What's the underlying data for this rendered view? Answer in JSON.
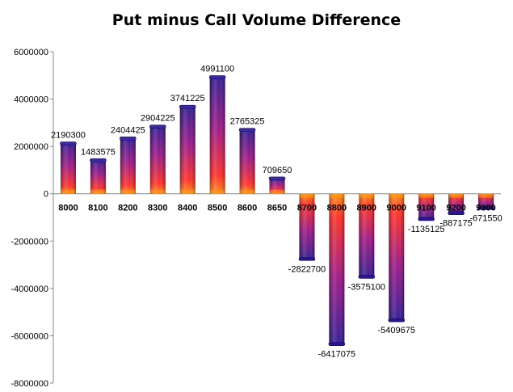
{
  "chart_data": {
    "type": "bar",
    "title": "Put minus Call Volume Difference",
    "categories": [
      "8000",
      "8100",
      "8200",
      "8300",
      "8400",
      "8500",
      "8600",
      "8650",
      "8700",
      "8800",
      "8900",
      "9000",
      "9100",
      "9200",
      "9300"
    ],
    "values": [
      2190300,
      1483575,
      2404425,
      2904225,
      3741225,
      4991100,
      2765325,
      709650,
      -2822700,
      -6417075,
      -3575100,
      -5409675,
      -1135125,
      -887175,
      -671550
    ],
    "data_labels": [
      "2190300",
      "1483575",
      "2404425",
      "2904225",
      "3741225",
      "4991100",
      "2765325",
      "709650",
      "-2822700",
      "-6417075",
      "-3575100",
      "-5409675",
      "-1135125",
      "-887175",
      "-671550"
    ],
    "ylim": [
      -8000000,
      6000000
    ],
    "yticks": [
      "-8000000",
      "-6000000",
      "-4000000",
      "-2000000",
      "0",
      "2000000",
      "4000000",
      "6000000"
    ],
    "ytick_values": [
      -8000000,
      -6000000,
      -4000000,
      -2000000,
      0,
      2000000,
      4000000,
      6000000
    ],
    "xlabel": "",
    "ylabel": "",
    "grid": false,
    "legend": "none",
    "colors": {
      "bar_top": "#2a1590",
      "bar_mid": "#b0107a",
      "bar_base": "#ff3b1e",
      "bar_glow": "#ff9a10",
      "axis": "#888888"
    }
  }
}
